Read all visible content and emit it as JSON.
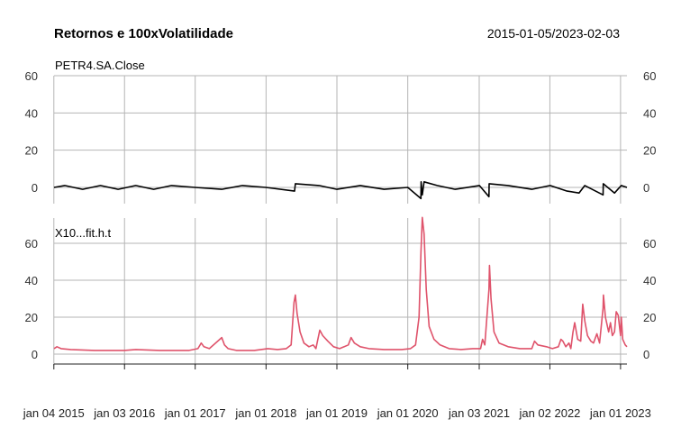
{
  "chart_data": {
    "type": "line",
    "title": "Retornos e 100xVolatilidade",
    "date_range": "2015-01-05/2023-02-03",
    "x_range": [
      "2015-01-05",
      "2023-02-03"
    ],
    "x_ticks": [
      {
        "date": "2015-01-04",
        "label": "jan 04 2015"
      },
      {
        "date": "2016-01-03",
        "label": "jan 03 2016"
      },
      {
        "date": "2017-01-01",
        "label": "jan 01 2017"
      },
      {
        "date": "2018-01-01",
        "label": "jan 01 2018"
      },
      {
        "date": "2019-01-01",
        "label": "jan 01 2019"
      },
      {
        "date": "2020-01-01",
        "label": "jan 01 2020"
      },
      {
        "date": "2021-01-03",
        "label": "jan 03 2021"
      },
      {
        "date": "2022-01-02",
        "label": "jan 02 2022"
      },
      {
        "date": "2023-01-01",
        "label": "jan 01 2023"
      }
    ],
    "panels": [
      {
        "series_name": "PETR4.SA.Close",
        "color": "#000000",
        "ylim": [
          0,
          60
        ],
        "yticks": [
          0,
          20,
          40,
          60
        ],
        "points": [
          [
            "2015-01-05",
            0
          ],
          [
            "2015-03-01",
            1
          ],
          [
            "2015-06-01",
            -1
          ],
          [
            "2015-09-01",
            1
          ],
          [
            "2015-12-01",
            -1
          ],
          [
            "2016-03-01",
            1
          ],
          [
            "2016-06-01",
            -1
          ],
          [
            "2016-09-01",
            1
          ],
          [
            "2017-01-01",
            0
          ],
          [
            "2017-05-18",
            -1
          ],
          [
            "2017-09-01",
            1
          ],
          [
            "2018-01-01",
            0
          ],
          [
            "2018-05-28",
            -2
          ],
          [
            "2018-06-01",
            2
          ],
          [
            "2018-10-01",
            1
          ],
          [
            "2019-01-01",
            -1
          ],
          [
            "2019-05-01",
            1
          ],
          [
            "2019-09-01",
            -1
          ],
          [
            "2020-01-01",
            0
          ],
          [
            "2020-03-09",
            -6
          ],
          [
            "2020-03-10",
            3
          ],
          [
            "2020-03-16",
            -4
          ],
          [
            "2020-03-25",
            3
          ],
          [
            "2020-06-01",
            1
          ],
          [
            "2020-09-01",
            -1
          ],
          [
            "2021-01-04",
            1
          ],
          [
            "2021-02-22",
            -5
          ],
          [
            "2021-02-23",
            2
          ],
          [
            "2021-06-01",
            1
          ],
          [
            "2021-10-01",
            -1
          ],
          [
            "2022-01-03",
            1
          ],
          [
            "2022-04-01",
            -2
          ],
          [
            "2022-06-01",
            -3
          ],
          [
            "2022-07-01",
            1
          ],
          [
            "2022-10-03",
            -4
          ],
          [
            "2022-10-04",
            2
          ],
          [
            "2022-12-01",
            -3
          ],
          [
            "2023-01-05",
            1
          ],
          [
            "2023-02-03",
            0
          ]
        ]
      },
      {
        "series_name": "X10...fit.h.t",
        "color": "#df536b",
        "ylim": [
          0,
          70
        ],
        "yticks": [
          0,
          20,
          40,
          60
        ],
        "points": [
          [
            "2015-01-05",
            3
          ],
          [
            "2015-01-20",
            4
          ],
          [
            "2015-02-10",
            3
          ],
          [
            "2015-04-01",
            2.5
          ],
          [
            "2015-08-01",
            2
          ],
          [
            "2016-01-01",
            2
          ],
          [
            "2016-03-01",
            2.5
          ],
          [
            "2016-07-01",
            2
          ],
          [
            "2016-12-01",
            2
          ],
          [
            "2017-01-15",
            3
          ],
          [
            "2017-02-01",
            6
          ],
          [
            "2017-02-15",
            4
          ],
          [
            "2017-03-15",
            3
          ],
          [
            "2017-05-18",
            9
          ],
          [
            "2017-06-01",
            5
          ],
          [
            "2017-06-20",
            3
          ],
          [
            "2017-08-01",
            2
          ],
          [
            "2017-11-01",
            2
          ],
          [
            "2018-01-10",
            3
          ],
          [
            "2018-03-01",
            2.5
          ],
          [
            "2018-04-15",
            3
          ],
          [
            "2018-05-10",
            5
          ],
          [
            "2018-05-25",
            28
          ],
          [
            "2018-06-01",
            32
          ],
          [
            "2018-06-10",
            22
          ],
          [
            "2018-06-25",
            12
          ],
          [
            "2018-07-15",
            6
          ],
          [
            "2018-08-10",
            4
          ],
          [
            "2018-09-01",
            5
          ],
          [
            "2018-09-15",
            3
          ],
          [
            "2018-10-05",
            13
          ],
          [
            "2018-10-20",
            10
          ],
          [
            "2018-11-15",
            7
          ],
          [
            "2018-12-15",
            4
          ],
          [
            "2019-01-15",
            3
          ],
          [
            "2019-03-01",
            5
          ],
          [
            "2019-03-15",
            9
          ],
          [
            "2019-04-01",
            6
          ],
          [
            "2019-05-01",
            4
          ],
          [
            "2019-06-15",
            3
          ],
          [
            "2019-09-01",
            2.5
          ],
          [
            "2019-12-01",
            2.5
          ],
          [
            "2020-01-15",
            3
          ],
          [
            "2020-02-10",
            5
          ],
          [
            "2020-02-28",
            20
          ],
          [
            "2020-03-09",
            55
          ],
          [
            "2020-03-16",
            74
          ],
          [
            "2020-03-25",
            65
          ],
          [
            "2020-04-05",
            35
          ],
          [
            "2020-04-20",
            15
          ],
          [
            "2020-05-15",
            8
          ],
          [
            "2020-06-15",
            5
          ],
          [
            "2020-08-01",
            3
          ],
          [
            "2020-10-01",
            2.5
          ],
          [
            "2020-12-01",
            3
          ],
          [
            "2021-01-10",
            3
          ],
          [
            "2021-01-20",
            8
          ],
          [
            "2021-02-01",
            5
          ],
          [
            "2021-02-22",
            35
          ],
          [
            "2021-02-25",
            48
          ],
          [
            "2021-03-05",
            30
          ],
          [
            "2021-03-20",
            12
          ],
          [
            "2021-04-15",
            6
          ],
          [
            "2021-06-01",
            4
          ],
          [
            "2021-08-01",
            3
          ],
          [
            "2021-10-01",
            3
          ],
          [
            "2021-10-15",
            7
          ],
          [
            "2021-11-01",
            5
          ],
          [
            "2021-12-15",
            4
          ],
          [
            "2022-01-15",
            3
          ],
          [
            "2022-02-15",
            4
          ],
          [
            "2022-02-28",
            8
          ],
          [
            "2022-03-10",
            7
          ],
          [
            "2022-03-25",
            4
          ],
          [
            "2022-04-10",
            6
          ],
          [
            "2022-04-20",
            3
          ],
          [
            "2022-05-01",
            12
          ],
          [
            "2022-05-10",
            17
          ],
          [
            "2022-05-25",
            8
          ],
          [
            "2022-06-10",
            7
          ],
          [
            "2022-06-20",
            27
          ],
          [
            "2022-07-01",
            18
          ],
          [
            "2022-07-15",
            10
          ],
          [
            "2022-08-01",
            7
          ],
          [
            "2022-08-15",
            6
          ],
          [
            "2022-09-01",
            11
          ],
          [
            "2022-09-15",
            6
          ],
          [
            "2022-10-03",
            25
          ],
          [
            "2022-10-05",
            32
          ],
          [
            "2022-10-15",
            20
          ],
          [
            "2022-11-01",
            12
          ],
          [
            "2022-11-10",
            17
          ],
          [
            "2022-11-20",
            10
          ],
          [
            "2022-12-01",
            12
          ],
          [
            "2022-12-10",
            23
          ],
          [
            "2022-12-20",
            21
          ],
          [
            "2023-01-01",
            10
          ],
          [
            "2023-01-05",
            20
          ],
          [
            "2023-01-12",
            8
          ],
          [
            "2023-01-25",
            5
          ],
          [
            "2023-02-03",
            4
          ]
        ]
      }
    ]
  }
}
